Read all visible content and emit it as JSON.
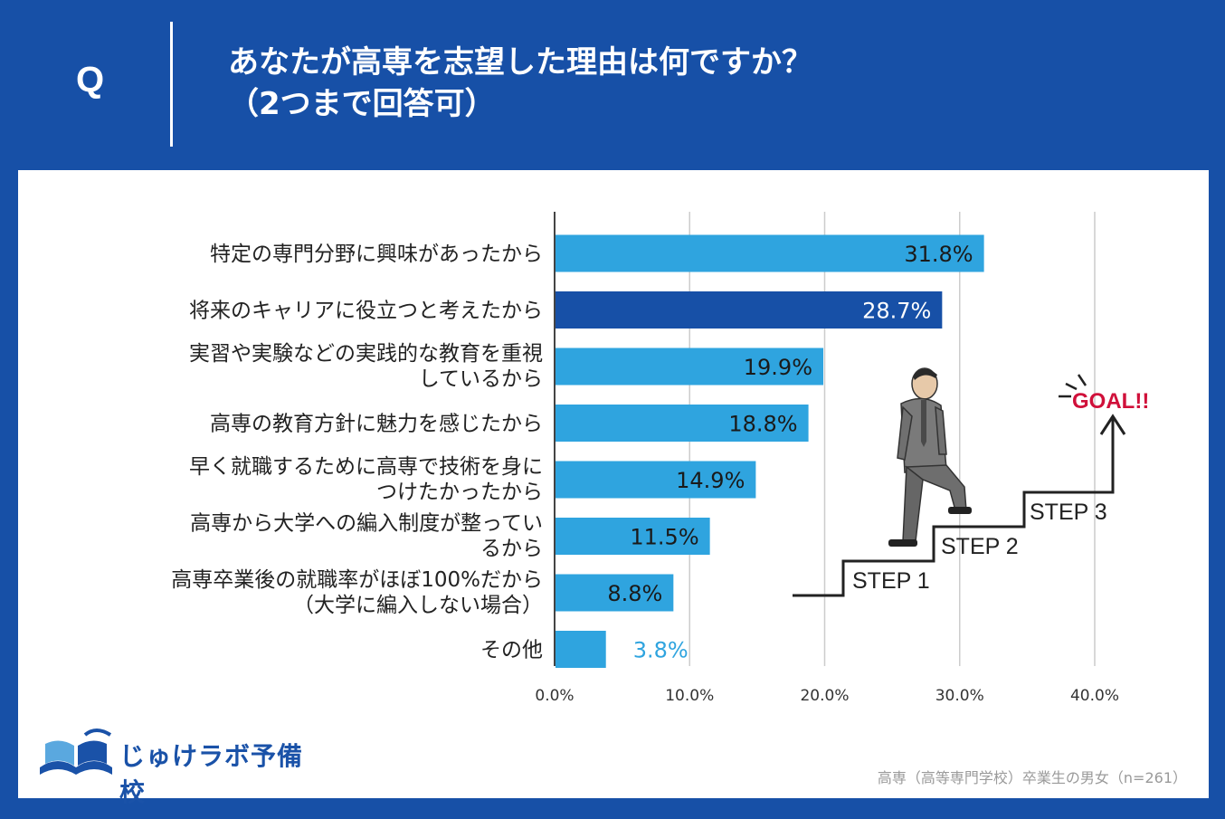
{
  "header": {
    "q_mark": "Q",
    "title_line1": "あなたが高専を志望した理由は何ですか？",
    "title_line2": "（2つまで回答可）"
  },
  "chart_data": {
    "type": "bar",
    "orientation": "horizontal",
    "categories": [
      [
        "特定の専門分野に興味があったから"
      ],
      [
        "将来のキャリアに役立つと考えたから"
      ],
      [
        "実習や実験などの実践的な教育を重視",
        "しているから"
      ],
      [
        "高専の教育方針に魅力を感じたから"
      ],
      [
        "早く就職するために高専で技術を身に",
        "つけたかったから"
      ],
      [
        "高専から大学への編入制度が整ってい",
        "るから"
      ],
      [
        "高専卒業後の就職率がほぼ100%だから",
        "（大学に編入しない場合）"
      ],
      [
        "その他"
      ]
    ],
    "values": [
      31.8,
      28.7,
      19.9,
      18.8,
      14.9,
      11.5,
      8.8,
      3.8
    ],
    "value_labels": [
      "31.8%",
      "28.7%",
      "19.9%",
      "18.8%",
      "14.9%",
      "11.5%",
      "8.8%",
      "3.8%"
    ],
    "xlim": [
      0,
      40
    ],
    "xticks": [
      "0.0%",
      "10.0%",
      "20.0%",
      "30.0%",
      "40.0%"
    ],
    "grid": true,
    "colors": {
      "bar": "#2fa4df",
      "highlight_bar": "#1750a7",
      "value_inside": "#1a1a1a",
      "value_inside_highlight": "#ffffff",
      "value_outside": "#2fa4df"
    },
    "highlight_index": 1
  },
  "illustration": {
    "steps": [
      "STEP 1",
      "STEP 2",
      "STEP 3"
    ],
    "goal": "GOAL!!",
    "goal_color": "#d0103a"
  },
  "logo": {
    "text": "じゅけラボ予備校"
  },
  "footnote": "高専（高等専門学校）卒業生の男女（n=261）"
}
